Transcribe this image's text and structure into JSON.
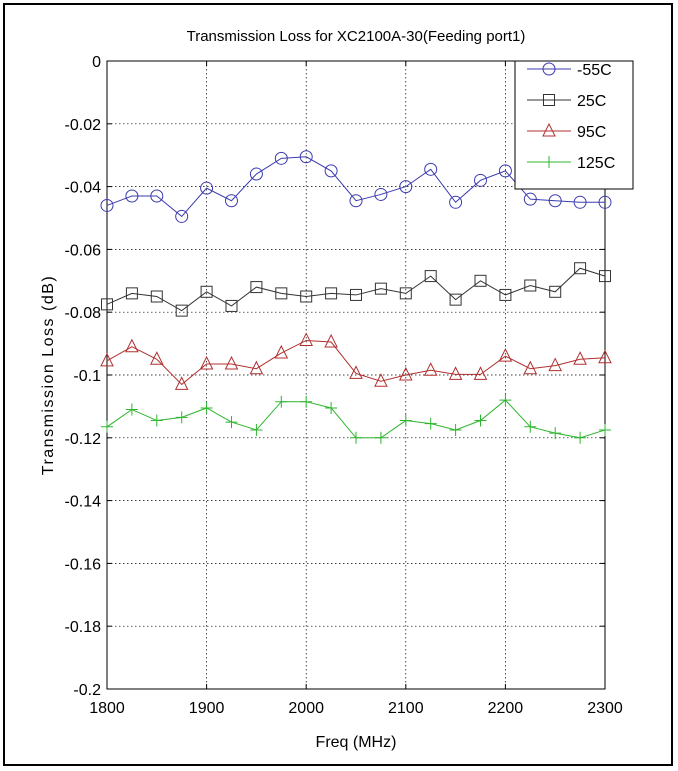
{
  "chart_data": {
    "type": "line",
    "title": "Transmission Loss for XC2100A-30(Feeding port1)",
    "xlabel": "Freq (MHz)",
    "ylabel": "Transmission Loss (dB)",
    "xlim": [
      1800,
      2300
    ],
    "ylim": [
      -0.2,
      0
    ],
    "xticks": [
      1800,
      1900,
      2000,
      2100,
      2200,
      2300
    ],
    "xtick_labels": [
      "1800",
      "1900",
      "2000",
      "2100",
      "2200",
      "2300"
    ],
    "yticks": [
      0,
      -0.02,
      -0.04,
      -0.06,
      -0.08,
      -0.1,
      -0.12,
      -0.14,
      -0.16,
      -0.18,
      -0.2
    ],
    "ytick_labels": [
      "0",
      "-0.02",
      "-0.04",
      "-0.06",
      "-0.08",
      "-0.1",
      "-0.12",
      "-0.14",
      "-0.16",
      "-0.18",
      "-0.2"
    ],
    "grid": true,
    "legend_position": "top-right",
    "x": [
      1800,
      1825,
      1850,
      1875,
      1900,
      1925,
      1950,
      1975,
      2000,
      2025,
      2050,
      2075,
      2100,
      2125,
      2150,
      2175,
      2200,
      2225,
      2250,
      2275,
      2300
    ],
    "series": [
      {
        "name": "-55C",
        "color": "#3b3bb0",
        "marker": "circle",
        "values": [
          -0.046,
          -0.043,
          -0.043,
          -0.0495,
          -0.0405,
          -0.0445,
          -0.036,
          -0.031,
          -0.0305,
          -0.035,
          -0.0445,
          -0.0425,
          -0.04,
          -0.0345,
          -0.045,
          -0.038,
          -0.035,
          -0.044,
          -0.0445,
          -0.045,
          -0.045
        ]
      },
      {
        "name": "25C",
        "color": "#333333",
        "marker": "square",
        "values": [
          -0.0775,
          -0.074,
          -0.075,
          -0.0795,
          -0.0735,
          -0.078,
          -0.072,
          -0.074,
          -0.075,
          -0.074,
          -0.0745,
          -0.0725,
          -0.074,
          -0.0685,
          -0.076,
          -0.07,
          -0.0745,
          -0.0715,
          -0.0735,
          -0.066,
          -0.0685
        ]
      },
      {
        "name": "95C",
        "color": "#b03030",
        "marker": "triangle",
        "values": [
          -0.0955,
          -0.091,
          -0.095,
          -0.103,
          -0.0965,
          -0.0965,
          -0.098,
          -0.093,
          -0.089,
          -0.0895,
          -0.0995,
          -0.102,
          -0.1,
          -0.0985,
          -0.0998,
          -0.0998,
          -0.094,
          -0.098,
          -0.097,
          -0.095,
          -0.0945
        ]
      },
      {
        "name": "125C",
        "color": "#2db52d",
        "marker": "plus",
        "values": [
          -0.1165,
          -0.111,
          -0.1145,
          -0.1135,
          -0.1105,
          -0.115,
          -0.1175,
          -0.1085,
          -0.1085,
          -0.1105,
          -0.12,
          -0.12,
          -0.1145,
          -0.1155,
          -0.1175,
          -0.1145,
          -0.108,
          -0.1165,
          -0.1185,
          -0.12,
          -0.1175
        ]
      }
    ]
  }
}
